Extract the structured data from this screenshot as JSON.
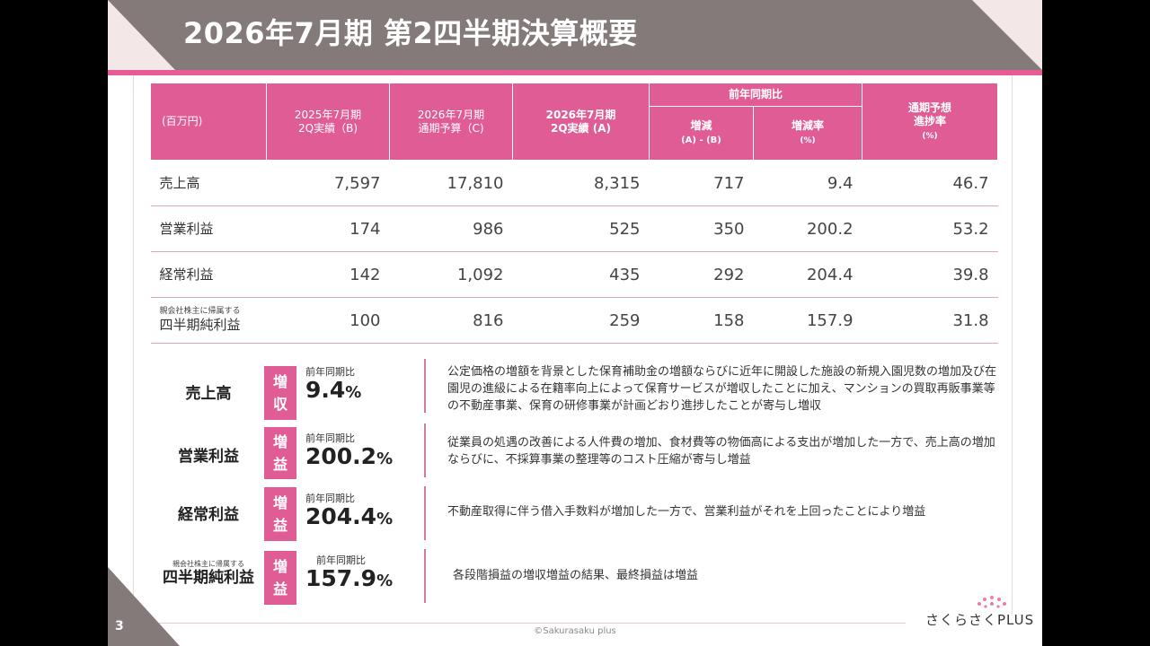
{
  "title": "2026年7月期 第2四半期決算概要",
  "page_number": "3",
  "copyright": "©Sakurasaku plus",
  "brand": "さくらさくPLUS",
  "colors": {
    "accent": "#e05c95",
    "header": "#857a7a",
    "corner": "#f3e7e7"
  },
  "table": {
    "unit": "(百万円)",
    "headers": {
      "col_b": [
        "2025年7月期",
        "2Q実績（B)"
      ],
      "col_c": [
        "2026年7月期",
        "通期予算（C)"
      ],
      "col_a": [
        "2026年7月期",
        "2Q実績 (A)"
      ],
      "yoy_group": "前年同期比",
      "diff": [
        "増減",
        "(A) - (B)"
      ],
      "diff_rate": [
        "増減率",
        "(%)"
      ],
      "progress": [
        "通期予想",
        "進捗率",
        "(%)"
      ]
    },
    "rows": [
      {
        "note": "",
        "label": "売上高",
        "b": "7,597",
        "c": "17,810",
        "a": "8,315",
        "diff": "717",
        "rate": "9.4",
        "progress": "46.7"
      },
      {
        "note": "",
        "label": "営業利益",
        "b": "174",
        "c": "986",
        "a": "525",
        "diff": "350",
        "rate": "200.2",
        "progress": "53.2"
      },
      {
        "note": "",
        "label": "経常利益",
        "b": "142",
        "c": "1,092",
        "a": "435",
        "diff": "292",
        "rate": "204.4",
        "progress": "39.8"
      },
      {
        "note": "親会社株主に帰属する",
        "label": "四半期純利益",
        "b": "100",
        "c": "816",
        "a": "259",
        "diff": "158",
        "rate": "157.9",
        "progress": "31.8"
      }
    ]
  },
  "summary": [
    {
      "note": "",
      "label": "売上高",
      "badge": [
        "増",
        "収"
      ],
      "prev_label": "前年同期比",
      "value": "9.4",
      "unit": "%",
      "text": "公定価格の増額を背景とした保育補助金の増額ならびに近年に開設した施設の新規入園児数の増加及び在園児の進級による在籍率向上によって保育サービスが増収したことに加え、マンションの買取再販事業等の不動産事業、保育の研修事業が計画どおり進捗したことが寄与し増収"
    },
    {
      "note": "",
      "label": "営業利益",
      "badge": [
        "増",
        "益"
      ],
      "prev_label": "前年同期比",
      "value": "200.2",
      "unit": "%",
      "text": "従業員の処遇の改善による人件費の増加、食材費等の物価高による支出が増加した一方で、売上高の増加ならびに、不採算事業の整理等のコスト圧縮が寄与し増益"
    },
    {
      "note": "",
      "label": "経常利益",
      "badge": [
        "増",
        "益"
      ],
      "prev_label": "前年同期比",
      "value": "204.4",
      "unit": "%",
      "text": "不動産取得に伴う借入手数料が増加した一方で、営業利益がそれを上回ったことにより増益"
    },
    {
      "note": "親会社株主に帰属する",
      "label": "四半期純利益",
      "badge": [
        "増",
        "益"
      ],
      "prev_label": "前年同期比",
      "value": "157.9",
      "unit": "%",
      "text": "各段階損益の増収増益の結果、最終損益は増益"
    }
  ]
}
